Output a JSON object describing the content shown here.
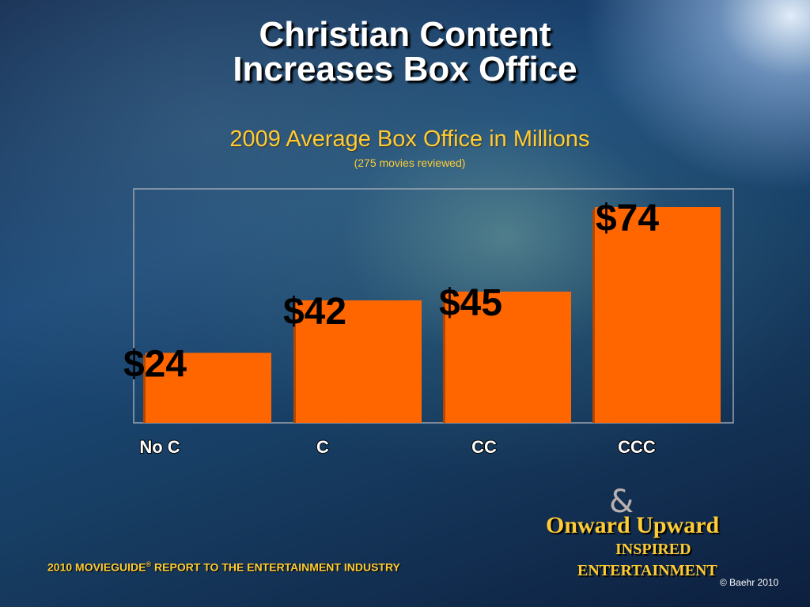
{
  "slide": {
    "title_line1": "Christian Content",
    "title_line2": "Increases Box Office",
    "subtitle": "2009 Average Box Office in Millions",
    "subnote": "(275 movies reviewed)",
    "footer_brand": "2010 MOVIEGUIDE",
    "footer_reg": "®",
    "footer_rest": " REPORT TO THE ENTERTAINMENT INDUSTRY",
    "logo_amp": "&",
    "logo_line1": "Onward  Upward",
    "logo_line2": "INSPIRED",
    "logo_line3": "ENTERTAINMENT",
    "copyright": "© Baehr 2010"
  },
  "chart_data": {
    "type": "bar",
    "title": "2009 Average Box Office in Millions",
    "subtitle": "(275 movies reviewed)",
    "categories": [
      "No C",
      "C",
      "CC",
      "CCC"
    ],
    "values": [
      24,
      42,
      45,
      74
    ],
    "data_labels": [
      "$24",
      "$42",
      "$45",
      "$74"
    ],
    "ylim": [
      0,
      74
    ],
    "grid": false,
    "legend": "none",
    "colors": {
      "bar": "#ff6600",
      "data_label": "#000000",
      "tick_label": "#ffffff"
    }
  }
}
